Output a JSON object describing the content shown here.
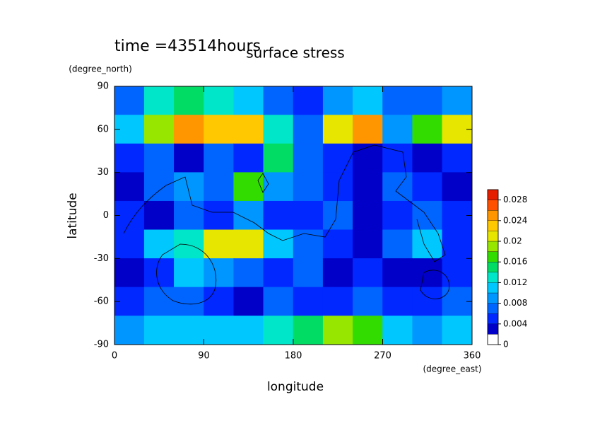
{
  "chart_data": {
    "type": "contour",
    "title": "surface stress",
    "subtitle": "time =43514hours",
    "x_label": "longitude",
    "x_units": "(degree_east)",
    "y_label": "latitude",
    "y_units": "(degree_north)",
    "x": [
      15,
      45,
      75,
      105,
      135,
      165,
      195,
      225,
      255,
      285,
      315,
      345
    ],
    "y": [
      80,
      60,
      40,
      20,
      0,
      -20,
      -40,
      -60,
      -80
    ],
    "z": [
      [
        0.006,
        0.012,
        0.014,
        0.012,
        0.01,
        0.006,
        0.004,
        0.008,
        0.01,
        0.006,
        0.006,
        0.008
      ],
      [
        0.01,
        0.018,
        0.024,
        0.022,
        0.022,
        0.012,
        0.006,
        0.02,
        0.024,
        0.008,
        0.016,
        0.02
      ],
      [
        0.004,
        0.006,
        0.002,
        0.006,
        0.004,
        0.014,
        0.006,
        0.004,
        0.002,
        0.004,
        0.002,
        0.004
      ],
      [
        0.002,
        0.006,
        0.008,
        0.006,
        0.016,
        0.008,
        0.006,
        0.004,
        0.002,
        0.006,
        0.004,
        0.002
      ],
      [
        0.004,
        0.002,
        0.006,
        0.004,
        0.008,
        0.004,
        0.004,
        0.006,
        0.002,
        0.004,
        0.006,
        0.004
      ],
      [
        0.004,
        0.01,
        0.012,
        0.02,
        0.02,
        0.01,
        0.006,
        0.004,
        0.002,
        0.006,
        0.01,
        0.004
      ],
      [
        0.002,
        0.004,
        0.01,
        0.008,
        0.006,
        0.004,
        0.006,
        0.002,
        0.004,
        0.002,
        0.002,
        0.004
      ],
      [
        0.004,
        0.006,
        0.006,
        0.004,
        0.002,
        0.006,
        0.004,
        0.004,
        0.006,
        0.004,
        0.004,
        0.006
      ],
      [
        0.008,
        0.01,
        0.01,
        0.01,
        0.01,
        0.012,
        0.014,
        0.018,
        0.016,
        0.01,
        0.008,
        0.01
      ]
    ],
    "xlim": [
      0,
      360
    ],
    "xticks": [
      0,
      90,
      180,
      270,
      360
    ],
    "ylim": [
      -90,
      90
    ],
    "yticks": [
      -90,
      -60,
      -30,
      0,
      30,
      60,
      90
    ],
    "levels": [
      0,
      0.002,
      0.004,
      0.006,
      0.008,
      0.01,
      0.012,
      0.014,
      0.016,
      0.018,
      0.02,
      0.022,
      0.024,
      0.026,
      0.028,
      0.03
    ],
    "colors": [
      "#ffffff",
      "#0000c8",
      "#0028ff",
      "#0064ff",
      "#0096ff",
      "#00c8ff",
      "#00e6c8",
      "#00dc64",
      "#32dc00",
      "#96e600",
      "#e6e600",
      "#ffc800",
      "#ff9600",
      "#ff5000",
      "#e61e00"
    ],
    "clim": [
      0,
      0.03
    ],
    "cticks": [
      0,
      0.004,
      0.008,
      0.012,
      0.016,
      0.02,
      0.024,
      0.028
    ]
  }
}
